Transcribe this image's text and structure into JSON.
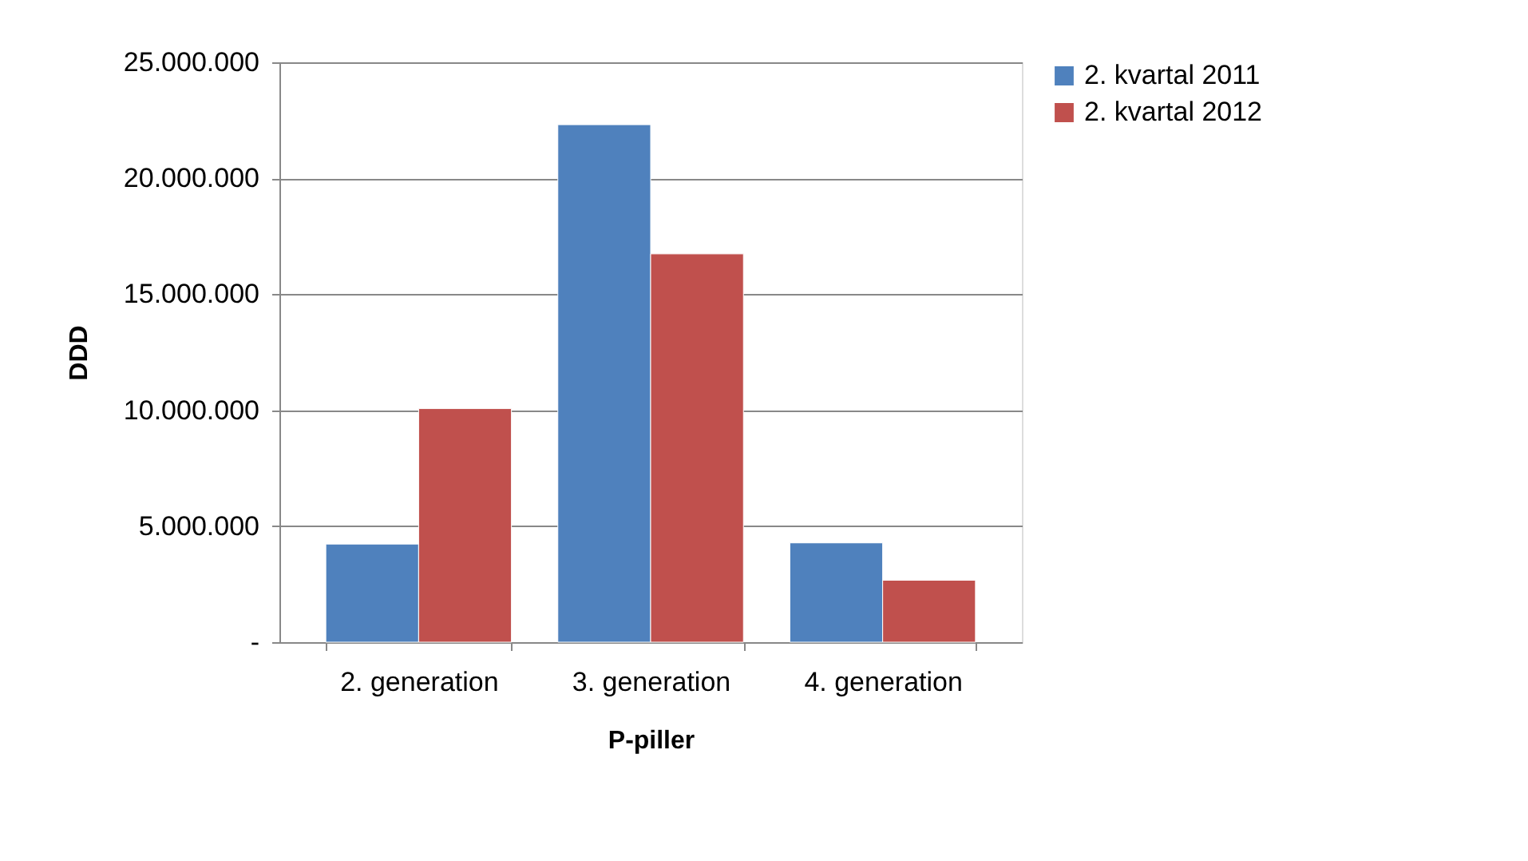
{
  "chart_data": {
    "type": "bar",
    "xlabel": "P-piller",
    "ylabel": "DDD",
    "categories": [
      "2. generation",
      "3. generation",
      "4. generation"
    ],
    "series": [
      {
        "name": "2. kvartal 2011",
        "color": "#4f81bd",
        "values": [
          4230000,
          22310000,
          4280000
        ]
      },
      {
        "name": "2. kvartal 2012",
        "color": "#c0504d",
        "values": [
          10070000,
          16740000,
          2670000
        ]
      }
    ],
    "ylim": [
      0,
      25000000
    ],
    "yticks": [
      {
        "value": 0,
        "label": "-"
      },
      {
        "value": 5000000,
        "label": "5.000.000"
      },
      {
        "value": 10000000,
        "label": "10.000.000"
      },
      {
        "value": 15000000,
        "label": "15.000.000"
      },
      {
        "value": 20000000,
        "label": "20.000.000"
      },
      {
        "value": 25000000,
        "label": "25.000.000"
      }
    ],
    "grid": "y",
    "legend": "right"
  }
}
